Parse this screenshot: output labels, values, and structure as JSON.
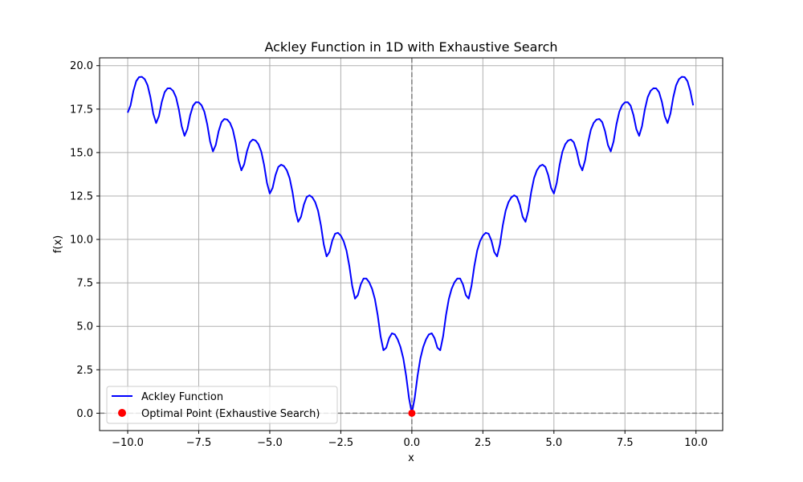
{
  "chart_data": {
    "type": "line",
    "title": "Ackley Function in 1D with Exhaustive Search",
    "xlabel": "x",
    "ylabel": "f(x)",
    "xlim": [
      -10.99,
      10.94
    ],
    "ylim": [
      -1.0,
      20.45
    ],
    "x_ticks": [
      -10.0,
      -7.5,
      -5.0,
      -2.5,
      0.0,
      2.5,
      5.0,
      7.5,
      10.0
    ],
    "x_tick_labels": [
      "−10.0",
      "−7.5",
      "−5.0",
      "−2.5",
      "0.0",
      "2.5",
      "5.0",
      "7.5",
      "10.0"
    ],
    "y_ticks": [
      0.0,
      2.5,
      5.0,
      7.5,
      10.0,
      12.5,
      15.0,
      17.5,
      20.0
    ],
    "y_tick_labels": [
      "0.0",
      "2.5",
      "5.0",
      "7.5",
      "10.0",
      "12.5",
      "15.0",
      "17.5",
      "20.0"
    ],
    "grid": true,
    "legend_position": "lower-left",
    "series": [
      {
        "name": "Ackley Function",
        "kind": "line",
        "color": "#0000ff",
        "x_range": [
          -10.0,
          9.9
        ],
        "x_step": 0.1,
        "function": "ackley_1d"
      },
      {
        "name": "Optimal Point (Exhaustive Search)",
        "kind": "scatter",
        "color": "#ff0000",
        "points": [
          {
            "x": 0.0,
            "y": 0.0
          }
        ]
      }
    ],
    "reference_lines": [
      {
        "orientation": "horizontal",
        "value": 0.0,
        "style": "dashed",
        "color": "#808080"
      },
      {
        "orientation": "vertical",
        "value": 0.0,
        "style": "dashed",
        "color": "#808080"
      }
    ]
  }
}
